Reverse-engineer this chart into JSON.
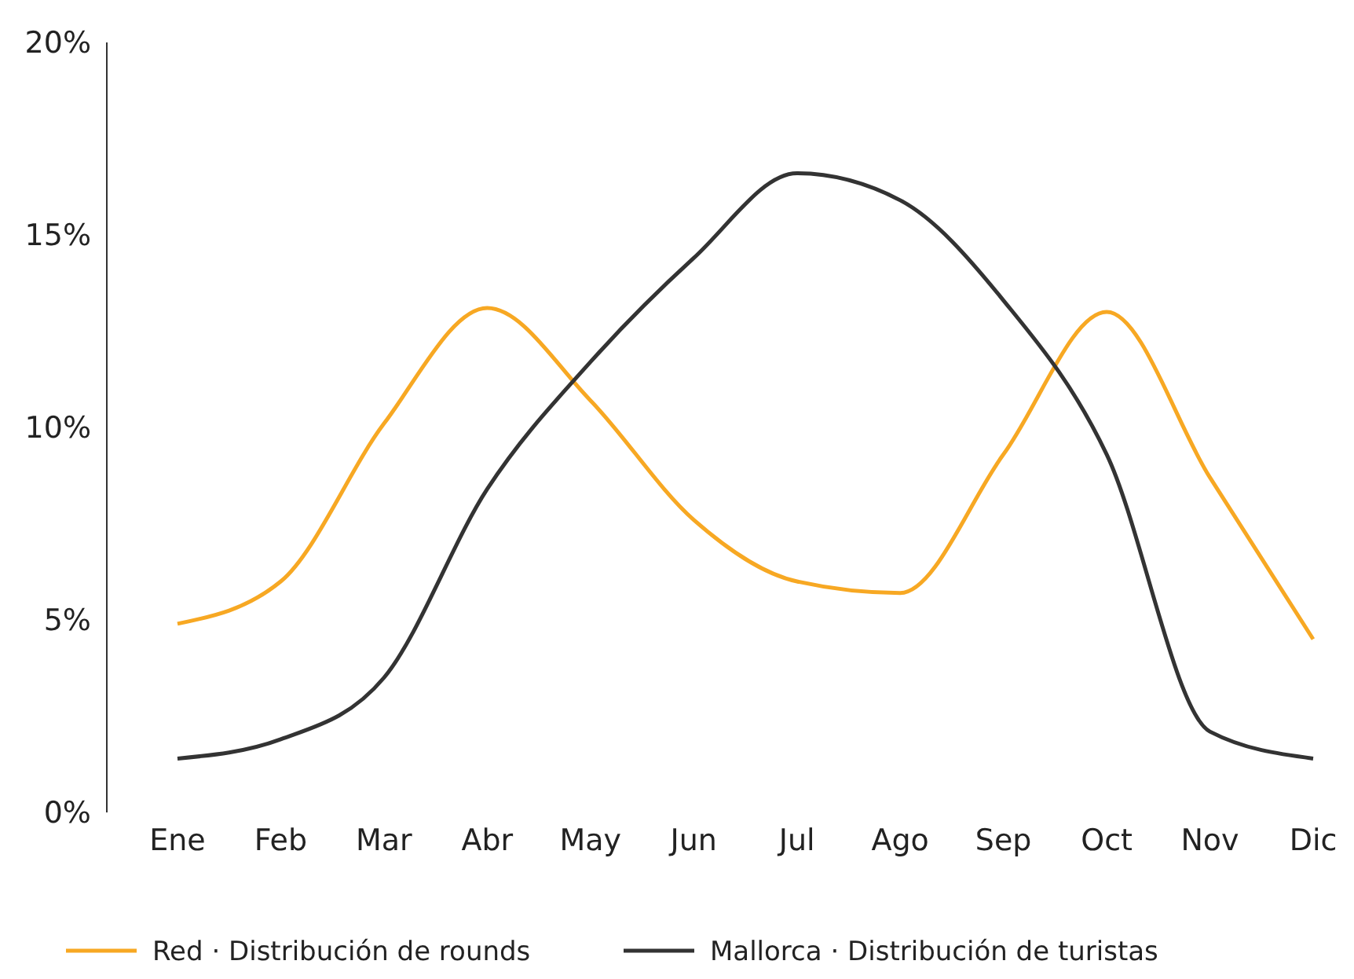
{
  "chart_data": {
    "type": "line",
    "categories": [
      "Ene",
      "Feb",
      "Mar",
      "Abr",
      "May",
      "Jun",
      "Jul",
      "Ago",
      "Sep",
      "Oct",
      "Nov",
      "Dic"
    ],
    "series": [
      {
        "name": "Red · Distribución de rounds",
        "color": "#f7a823",
        "values": [
          4.9,
          6.0,
          10.1,
          13.1,
          10.7,
          7.6,
          6.0,
          5.7,
          9.3,
          13.0,
          8.7,
          4.5
        ]
      },
      {
        "name": "Mallorca · Distribución de turistas",
        "color": "#333333",
        "values": [
          1.4,
          1.9,
          3.5,
          8.4,
          11.7,
          14.4,
          16.6,
          15.9,
          13.3,
          9.3,
          2.1,
          1.4
        ]
      }
    ],
    "ylim": [
      0,
      20
    ],
    "yticks": [
      {
        "value": 0,
        "label": "0%"
      },
      {
        "value": 5,
        "label": "5%"
      },
      {
        "value": 10,
        "label": "10%"
      },
      {
        "value": 15,
        "label": "15%"
      },
      {
        "value": 20,
        "label": "20%"
      }
    ],
    "grid": false,
    "legend": "bottom",
    "marker": "none",
    "line_style": "solid"
  }
}
